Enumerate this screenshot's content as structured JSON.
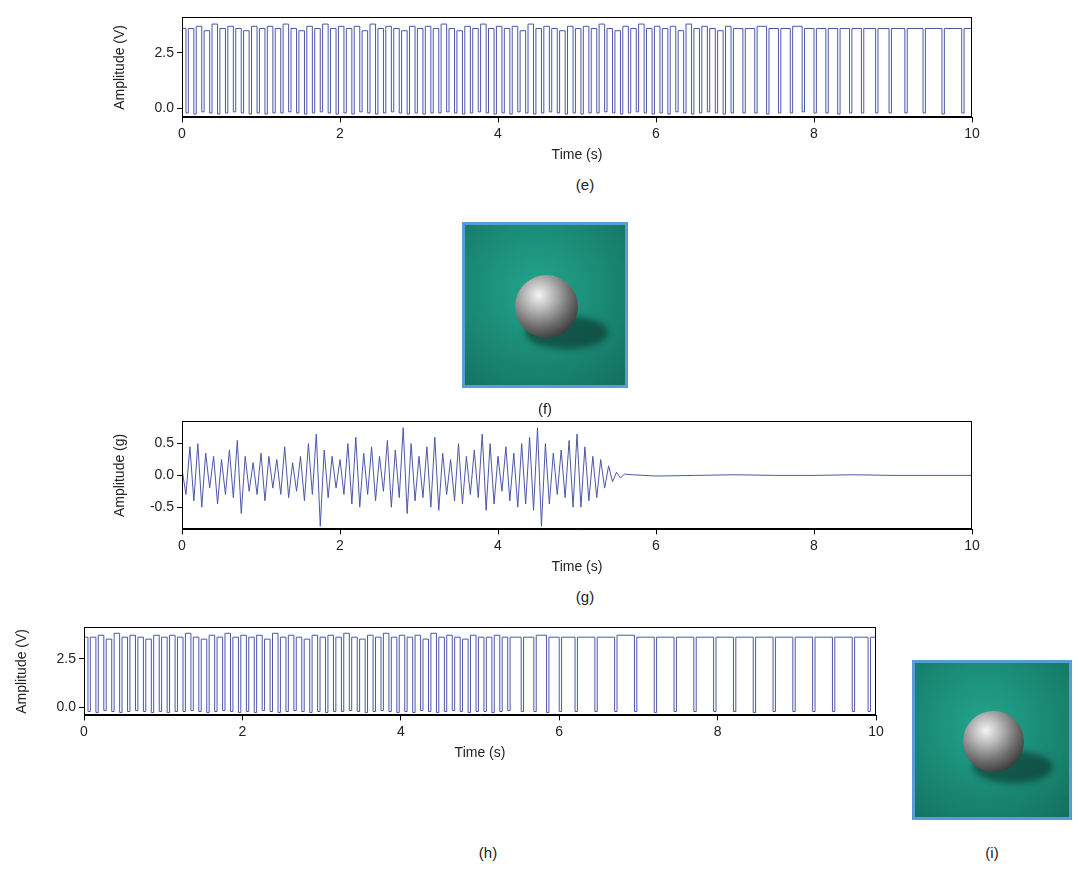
{
  "chart_data": [
    {
      "type": "line",
      "caption": "(e)",
      "x_label": "Time (s)",
      "y_label": "Amplitude (V)",
      "color": "#4c57a8",
      "line_style": "steps",
      "xlim": [
        0,
        10
      ],
      "xticks": [
        0,
        2,
        4,
        6,
        8,
        10
      ],
      "ylim": [
        -0.4,
        4.1
      ],
      "yticks": [
        {
          "value": 0,
          "label": "0.0"
        },
        {
          "value": 2.5,
          "label": "2.5"
        }
      ],
      "x": [
        0,
        0.05,
        0.08,
        0.15,
        0.18,
        0.25,
        0.28,
        0.35,
        0.38,
        0.45,
        0.48,
        0.55,
        0.58,
        0.65,
        0.68,
        0.75,
        0.78,
        0.85,
        0.88,
        0.95,
        0.98,
        1.05,
        1.08,
        1.15,
        1.18,
        1.25,
        1.28,
        1.35,
        1.38,
        1.45,
        1.48,
        1.55,
        1.58,
        1.65,
        1.68,
        1.75,
        1.78,
        1.85,
        1.88,
        1.95,
        1.98,
        2.05,
        2.08,
        2.15,
        2.18,
        2.25,
        2.28,
        2.35,
        2.38,
        2.45,
        2.48,
        2.55,
        2.58,
        2.65,
        2.68,
        2.75,
        2.78,
        2.85,
        2.88,
        2.95,
        2.98,
        3.05,
        3.08,
        3.15,
        3.18,
        3.25,
        3.28,
        3.35,
        3.38,
        3.45,
        3.48,
        3.55,
        3.58,
        3.65,
        3.68,
        3.75,
        3.78,
        3.85,
        3.88,
        3.95,
        3.98,
        4.05,
        4.08,
        4.15,
        4.18,
        4.25,
        4.28,
        4.35,
        4.38,
        4.45,
        4.48,
        4.55,
        4.58,
        4.65,
        4.68,
        4.75,
        4.78,
        4.85,
        4.88,
        4.95,
        4.98,
        5.05,
        5.08,
        5.15,
        5.18,
        5.25,
        5.28,
        5.35,
        5.38,
        5.45,
        5.48,
        5.55,
        5.58,
        5.65,
        5.68,
        5.75,
        5.78,
        5.85,
        5.88,
        5.95,
        5.98,
        6.05,
        6.08,
        6.15,
        6.18,
        6.25,
        6.28,
        6.35,
        6.38,
        6.45,
        6.48,
        6.55,
        6.58,
        6.65,
        6.68,
        6.75,
        6.78,
        6.85,
        6.88,
        6.95,
        6.98,
        7.1,
        7.13,
        7.25,
        7.28,
        7.4,
        7.43,
        7.55,
        7.58,
        7.7,
        7.73,
        7.85,
        7.88,
        8.0,
        8.03,
        8.15,
        8.18,
        8.3,
        8.33,
        8.45,
        8.48,
        8.6,
        8.63,
        8.78,
        8.81,
        8.95,
        8.98,
        9.15,
        9.18,
        9.38,
        9.41,
        9.62,
        9.65,
        9.87,
        9.9,
        10
      ],
      "values": [
        3.6,
        -0.2,
        3.6,
        -0.25,
        3.7,
        -0.15,
        3.5,
        -0.2,
        3.8,
        -0.25,
        3.6,
        -0.2,
        3.7,
        -0.15,
        3.6,
        -0.2,
        3.5,
        -0.25,
        3.7,
        -0.2,
        3.6,
        -0.25,
        3.7,
        -0.2,
        3.6,
        -0.2,
        3.8,
        -0.15,
        3.6,
        -0.2,
        3.5,
        -0.25,
        3.7,
        -0.2,
        3.6,
        -0.15,
        3.8,
        -0.2,
        3.6,
        -0.25,
        3.7,
        -0.2,
        3.6,
        -0.25,
        3.7,
        -0.15,
        3.5,
        -0.2,
        3.8,
        -0.25,
        3.6,
        -0.2,
        3.7,
        -0.15,
        3.6,
        -0.2,
        3.5,
        -0.25,
        3.7,
        -0.2,
        3.6,
        -0.25,
        3.7,
        -0.2,
        3.6,
        -0.2,
        3.8,
        -0.15,
        3.6,
        -0.2,
        3.5,
        -0.25,
        3.7,
        -0.2,
        3.6,
        -0.15,
        3.8,
        -0.2,
        3.6,
        -0.25,
        3.7,
        -0.2,
        3.6,
        -0.25,
        3.7,
        -0.15,
        3.5,
        -0.2,
        3.8,
        -0.25,
        3.6,
        -0.2,
        3.7,
        -0.15,
        3.6,
        -0.2,
        3.5,
        -0.25,
        3.7,
        -0.2,
        3.6,
        -0.25,
        3.7,
        -0.2,
        3.6,
        -0.2,
        3.8,
        -0.15,
        3.6,
        -0.2,
        3.5,
        -0.25,
        3.7,
        -0.2,
        3.6,
        -0.15,
        3.8,
        -0.2,
        3.6,
        -0.25,
        3.7,
        -0.2,
        3.6,
        -0.25,
        3.7,
        -0.15,
        3.5,
        -0.2,
        3.8,
        -0.25,
        3.6,
        -0.2,
        3.7,
        -0.15,
        3.6,
        -0.2,
        3.5,
        -0.25,
        3.7,
        -0.2,
        3.6,
        -0.2,
        3.6,
        -0.2,
        3.7,
        -0.25,
        3.6,
        -0.2,
        3.6,
        -0.2,
        3.7,
        -0.15,
        3.6,
        -0.2,
        3.6,
        -0.2,
        3.6,
        -0.25,
        3.6,
        -0.2,
        3.6,
        -0.2,
        3.6,
        -0.2,
        3.6,
        -0.2,
        3.6,
        -0.2,
        3.6,
        -0.2,
        3.6,
        -0.25,
        3.6,
        -0.2,
        3.6,
        3.6
      ]
    },
    {
      "type": "line",
      "caption": "(g)",
      "x_label": "Time (s)",
      "y_label": "Amplitude (g)",
      "color": "#4c57a8",
      "line_style": "solid",
      "xlim": [
        0,
        10
      ],
      "xticks": [
        0,
        2,
        4,
        6,
        8,
        10
      ],
      "ylim": [
        -0.85,
        0.85
      ],
      "yticks": [
        {
          "value": -0.5,
          "label": "-0.5"
        },
        {
          "value": 0,
          "label": "0.0"
        },
        {
          "value": 0.5,
          "label": "0.5"
        }
      ],
      "x": [
        0,
        0.05,
        0.1,
        0.15,
        0.2,
        0.25,
        0.3,
        0.35,
        0.4,
        0.45,
        0.5,
        0.55,
        0.6,
        0.65,
        0.7,
        0.75,
        0.8,
        0.85,
        0.9,
        0.95,
        1,
        1.05,
        1.1,
        1.15,
        1.2,
        1.25,
        1.3,
        1.35,
        1.4,
        1.45,
        1.5,
        1.55,
        1.6,
        1.65,
        1.7,
        1.75,
        1.8,
        1.85,
        1.9,
        1.95,
        2,
        2.05,
        2.1,
        2.15,
        2.2,
        2.25,
        2.3,
        2.35,
        2.4,
        2.45,
        2.5,
        2.55,
        2.6,
        2.65,
        2.7,
        2.75,
        2.8,
        2.85,
        2.9,
        2.95,
        3,
        3.05,
        3.1,
        3.15,
        3.2,
        3.25,
        3.3,
        3.35,
        3.4,
        3.45,
        3.5,
        3.55,
        3.6,
        3.65,
        3.7,
        3.75,
        3.8,
        3.85,
        3.9,
        3.95,
        4,
        4.05,
        4.1,
        4.15,
        4.2,
        4.25,
        4.3,
        4.35,
        4.4,
        4.45,
        4.5,
        4.55,
        4.6,
        4.65,
        4.7,
        4.75,
        4.8,
        4.85,
        4.9,
        4.95,
        5,
        5.05,
        5.1,
        5.15,
        5.2,
        5.25,
        5.3,
        5.35,
        5.4,
        5.45,
        5.5,
        5.55,
        5.6,
        5.7,
        6,
        6.5,
        7,
        7.5,
        8,
        8.5,
        9,
        9.5,
        10
      ],
      "values": [
        0.1,
        -0.3,
        0.45,
        -0.4,
        0.5,
        -0.5,
        0.35,
        -0.2,
        0.3,
        -0.45,
        0.25,
        -0.3,
        0.4,
        -0.35,
        0.55,
        -0.6,
        0.3,
        -0.25,
        0.2,
        -0.3,
        0.35,
        -0.4,
        0.3,
        -0.2,
        0.25,
        -0.3,
        0.45,
        -0.35,
        0.2,
        -0.25,
        0.3,
        -0.4,
        0.5,
        -0.3,
        0.65,
        -0.8,
        0.4,
        -0.35,
        0.3,
        -0.2,
        0.25,
        -0.3,
        0.5,
        -0.45,
        0.6,
        -0.5,
        0.35,
        -0.3,
        0.45,
        -0.4,
        0.3,
        -0.25,
        0.55,
        -0.5,
        0.4,
        -0.35,
        0.75,
        -0.6,
        0.5,
        -0.4,
        0.3,
        -0.35,
        0.45,
        -0.5,
        0.6,
        -0.55,
        0.35,
        -0.3,
        0.25,
        -0.4,
        0.5,
        -0.45,
        0.3,
        -0.3,
        0.4,
        -0.35,
        0.65,
        -0.55,
        0.5,
        -0.45,
        0.3,
        -0.25,
        0.45,
        -0.4,
        0.35,
        -0.5,
        0.5,
        -0.45,
        0.6,
        -0.55,
        0.75,
        -0.8,
        0.5,
        -0.45,
        0.35,
        -0.3,
        0.4,
        -0.35,
        0.55,
        -0.5,
        0.65,
        -0.5,
        0.45,
        -0.4,
        0.3,
        -0.35,
        0.25,
        -0.2,
        0.15,
        -0.1,
        0.05,
        -0.04,
        0.02,
        0.01,
        -0.01,
        0,
        0.01,
        0,
        0,
        0.01,
        0,
        0,
        0
      ]
    },
    {
      "type": "line",
      "caption": "(h)",
      "x_label": "Time (s)",
      "y_label": "Amplitude (V)",
      "color": "#4c57a8",
      "line_style": "steps",
      "xlim": [
        0,
        10
      ],
      "xticks": [
        0,
        2,
        4,
        6,
        8,
        10
      ],
      "ylim": [
        -0.4,
        4.1
      ],
      "yticks": [
        {
          "value": 0,
          "label": "0.0"
        },
        {
          "value": 2.5,
          "label": "2.5"
        }
      ],
      "x": [
        0,
        0.05,
        0.08,
        0.15,
        0.18,
        0.25,
        0.28,
        0.35,
        0.38,
        0.45,
        0.48,
        0.55,
        0.58,
        0.65,
        0.68,
        0.75,
        0.78,
        0.85,
        0.88,
        0.95,
        0.98,
        1.05,
        1.08,
        1.15,
        1.18,
        1.25,
        1.28,
        1.35,
        1.38,
        1.45,
        1.48,
        1.55,
        1.58,
        1.65,
        1.68,
        1.75,
        1.78,
        1.85,
        1.88,
        1.95,
        1.98,
        2.05,
        2.08,
        2.15,
        2.18,
        2.25,
        2.28,
        2.35,
        2.38,
        2.45,
        2.48,
        2.55,
        2.58,
        2.65,
        2.68,
        2.75,
        2.78,
        2.85,
        2.88,
        2.95,
        2.98,
        3.05,
        3.08,
        3.15,
        3.18,
        3.25,
        3.28,
        3.35,
        3.38,
        3.45,
        3.48,
        3.55,
        3.58,
        3.65,
        3.68,
        3.75,
        3.78,
        3.85,
        3.88,
        3.95,
        3.98,
        4.05,
        4.08,
        4.15,
        4.18,
        4.25,
        4.28,
        4.35,
        4.38,
        4.45,
        4.48,
        4.55,
        4.58,
        4.65,
        4.68,
        4.75,
        4.78,
        4.85,
        4.88,
        4.95,
        4.98,
        5.05,
        5.08,
        5.15,
        5.18,
        5.25,
        5.28,
        5.35,
        5.38,
        5.52,
        5.55,
        5.68,
        5.71,
        5.84,
        5.87,
        6.0,
        6.03,
        6.2,
        6.23,
        6.45,
        6.48,
        6.7,
        6.73,
        6.95,
        6.98,
        7.2,
        7.23,
        7.45,
        7.48,
        7.7,
        7.73,
        7.95,
        7.98,
        8.2,
        8.23,
        8.45,
        8.48,
        8.7,
        8.73,
        8.95,
        8.98,
        9.2,
        9.23,
        9.45,
        9.48,
        9.7,
        9.73,
        9.9,
        9.93,
        10
      ],
      "values": [
        3.6,
        -0.2,
        3.6,
        -0.25,
        3.7,
        -0.15,
        3.5,
        -0.2,
        3.8,
        -0.25,
        3.6,
        -0.2,
        3.7,
        -0.15,
        3.6,
        -0.2,
        3.5,
        -0.25,
        3.7,
        -0.2,
        3.6,
        -0.25,
        3.7,
        -0.2,
        3.6,
        -0.2,
        3.8,
        -0.15,
        3.6,
        -0.2,
        3.5,
        -0.25,
        3.7,
        -0.2,
        3.6,
        -0.15,
        3.8,
        -0.2,
        3.6,
        -0.25,
        3.7,
        -0.2,
        3.6,
        -0.25,
        3.7,
        -0.15,
        3.5,
        -0.2,
        3.8,
        -0.25,
        3.6,
        -0.2,
        3.7,
        -0.15,
        3.6,
        -0.2,
        3.5,
        -0.25,
        3.7,
        -0.2,
        3.6,
        -0.25,
        3.7,
        -0.2,
        3.6,
        -0.2,
        3.8,
        -0.15,
        3.6,
        -0.2,
        3.5,
        -0.25,
        3.7,
        -0.2,
        3.6,
        -0.15,
        3.8,
        -0.2,
        3.6,
        -0.25,
        3.7,
        -0.2,
        3.6,
        -0.25,
        3.7,
        -0.15,
        3.5,
        -0.2,
        3.8,
        -0.25,
        3.6,
        -0.2,
        3.7,
        -0.15,
        3.6,
        -0.2,
        3.5,
        -0.25,
        3.7,
        -0.2,
        3.6,
        -0.2,
        3.6,
        -0.25,
        3.7,
        -0.2,
        3.6,
        -0.15,
        3.6,
        -0.2,
        3.6,
        -0.2,
        3.7,
        -0.25,
        3.6,
        -0.2,
        3.6,
        -0.2,
        3.6,
        -0.2,
        3.6,
        -0.2,
        3.7,
        -0.2,
        3.6,
        -0.25,
        3.6,
        -0.2,
        3.6,
        -0.2,
        3.6,
        -0.2,
        3.6,
        -0.2,
        3.6,
        -0.25,
        3.6,
        -0.2,
        3.6,
        -0.2,
        3.6,
        -0.2,
        3.6,
        -0.2,
        3.6,
        -0.2,
        3.6,
        -0.2,
        3.6,
        3.6
      ]
    }
  ],
  "photos": [
    {
      "caption": "(f)"
    },
    {
      "caption": "(i)"
    }
  ]
}
